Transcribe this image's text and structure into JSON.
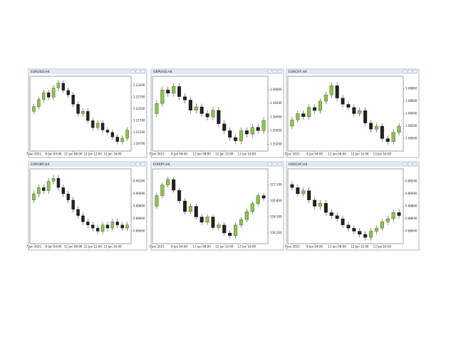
{
  "chart_data": [
    {
      "type": "candlestick",
      "title": "EURUSD,H4",
      "up_color": "#8bc34a",
      "down_color": "#222222",
      "ylim": [
        1.204,
        1.236
      ],
      "yticks": [
        {
          "value": 1.207,
          "label": "1.20700"
        },
        {
          "value": 1.212,
          "label": "1.21200"
        },
        {
          "value": 1.217,
          "label": "1.21700"
        },
        {
          "value": 1.222,
          "label": "1.22200"
        },
        {
          "value": 1.227,
          "label": "1.22700"
        },
        {
          "value": 1.232,
          "label": "1.23200"
        }
      ],
      "categories": [
        "7 Jan 2021",
        null,
        null,
        null,
        "8 Jan 04:00",
        null,
        null,
        null,
        "11 Jan 08:00",
        null,
        null,
        null,
        "12 Jan 12:00",
        null,
        null,
        null,
        "13 Jan 16:00",
        null,
        null,
        null
      ],
      "candles": [
        [
          1.221,
          1.2242,
          1.2198,
          1.223
        ],
        [
          1.223,
          1.2272,
          1.2218,
          1.226
        ],
        [
          1.226,
          1.2302,
          1.2248,
          1.229
        ],
        [
          1.229,
          1.2302,
          1.2258,
          1.227
        ],
        [
          1.227,
          1.2322,
          1.2258,
          1.231
        ],
        [
          1.231,
          1.2342,
          1.2298,
          1.233
        ],
        [
          1.233,
          1.2342,
          1.2288,
          1.23
        ],
        [
          1.23,
          1.2312,
          1.2268,
          1.228
        ],
        [
          1.228,
          1.2292,
          1.2228,
          1.224
        ],
        [
          1.224,
          1.2252,
          1.2188,
          1.22
        ],
        [
          1.22,
          1.2222,
          1.2188,
          1.221
        ],
        [
          1.221,
          1.2222,
          1.2158,
          1.217
        ],
        [
          1.217,
          1.2182,
          1.2128,
          1.214
        ],
        [
          1.214,
          1.2172,
          1.2128,
          1.216
        ],
        [
          1.216,
          1.2172,
          1.2118,
          1.213
        ],
        [
          1.213,
          1.2142,
          1.2108,
          1.212
        ],
        [
          1.212,
          1.2132,
          1.2088,
          1.21
        ],
        [
          1.21,
          1.2112,
          1.2068,
          1.208
        ],
        [
          1.208,
          1.2107,
          1.2068,
          1.2095
        ],
        [
          1.2095,
          1.2142,
          1.2083,
          1.213
        ]
      ]
    },
    {
      "type": "candlestick",
      "title": "GBPUSD,H4",
      "up_color": "#8bc34a",
      "down_color": "#222222",
      "ylim": [
        1.35,
        1.372
      ],
      "yticks": [
        {
          "value": 1.352,
          "label": "1.35200"
        },
        {
          "value": 1.356,
          "label": "1.35600"
        },
        {
          "value": 1.36,
          "label": "1.36000"
        },
        {
          "value": 1.364,
          "label": "1.36400"
        },
        {
          "value": 1.368,
          "label": "1.36800"
        }
      ],
      "categories": [
        "7 Jan 2021",
        null,
        null,
        null,
        "8 Jan 04:00",
        null,
        null,
        null,
        "11 Jan 08:00",
        null,
        null,
        null,
        "12 Jan 12:00",
        null,
        null,
        null,
        "13 Jan 16:00",
        null,
        null,
        null
      ],
      "candles": [
        [
          1.361,
          1.365,
          1.36,
          1.364
        ],
        [
          1.364,
          1.369,
          1.363,
          1.368
        ],
        [
          1.368,
          1.369,
          1.366,
          1.367
        ],
        [
          1.367,
          1.37,
          1.366,
          1.369
        ],
        [
          1.369,
          1.37,
          1.365,
          1.366
        ],
        [
          1.366,
          1.367,
          1.364,
          1.365
        ],
        [
          1.365,
          1.366,
          1.361,
          1.362
        ],
        [
          1.362,
          1.364,
          1.361,
          1.363
        ],
        [
          1.363,
          1.364,
          1.36,
          1.361
        ],
        [
          1.361,
          1.362,
          1.359,
          1.36
        ],
        [
          1.36,
          1.363,
          1.359,
          1.362
        ],
        [
          1.362,
          1.363,
          1.357,
          1.358
        ],
        [
          1.358,
          1.359,
          1.355,
          1.356
        ],
        [
          1.356,
          1.357,
          1.353,
          1.354
        ],
        [
          1.354,
          1.355,
          1.352,
          1.353
        ],
        [
          1.353,
          1.357,
          1.352,
          1.356
        ],
        [
          1.356,
          1.357,
          1.354,
          1.355
        ],
        [
          1.355,
          1.358,
          1.354,
          1.357
        ],
        [
          1.357,
          1.358,
          1.355,
          1.356
        ],
        [
          1.356,
          1.36,
          1.355,
          1.359
        ]
      ]
    },
    {
      "type": "candlestick",
      "title": "EURCHF,H4",
      "up_color": "#8bc34a",
      "down_color": "#222222",
      "ylim": [
        1.078,
        1.09
      ],
      "yticks": [
        {
          "value": 1.08,
          "label": "1.08000"
        },
        {
          "value": 1.082,
          "label": "1.08200"
        },
        {
          "value": 1.084,
          "label": "1.08400"
        },
        {
          "value": 1.086,
          "label": "1.08600"
        },
        {
          "value": 1.088,
          "label": "1.08800"
        }
      ],
      "categories": [
        "7 Jan 2021",
        null,
        null,
        null,
        "8 Jan 04:00",
        null,
        null,
        null,
        "11 Jan 08:00",
        null,
        null,
        null,
        "12 Jan 12:00",
        null,
        null,
        null,
        "13 Jan 16:00",
        null,
        null,
        null
      ],
      "candles": [
        [
          1.082,
          1.0835,
          1.0815,
          1.083
        ],
        [
          1.083,
          1.0845,
          1.0825,
          1.084
        ],
        [
          1.084,
          1.0845,
          1.083,
          1.0835
        ],
        [
          1.0835,
          1.0855,
          1.083,
          1.085
        ],
        [
          1.085,
          1.0855,
          1.084,
          1.0845
        ],
        [
          1.0845,
          1.0865,
          1.084,
          1.086
        ],
        [
          1.086,
          1.0875,
          1.0855,
          1.087
        ],
        [
          1.087,
          1.089,
          1.0865,
          1.0885
        ],
        [
          1.0885,
          1.089,
          1.086,
          1.0865
        ],
        [
          1.0865,
          1.087,
          1.085,
          1.0855
        ],
        [
          1.0855,
          1.086,
          1.0845,
          1.085
        ],
        [
          1.085,
          1.0855,
          1.0835,
          1.084
        ],
        [
          1.084,
          1.085,
          1.0835,
          1.0845
        ],
        [
          1.0845,
          1.085,
          1.082,
          1.0825
        ],
        [
          1.0825,
          1.083,
          1.081,
          1.0815
        ],
        [
          1.0815,
          1.0825,
          1.081,
          1.082
        ],
        [
          1.082,
          1.0825,
          1.0795,
          1.08
        ],
        [
          1.08,
          1.0805,
          1.079,
          1.0795
        ],
        [
          1.0795,
          1.0815,
          1.079,
          1.081
        ],
        [
          1.081,
          1.0825,
          1.0805,
          1.082
        ]
      ]
    },
    {
      "type": "candlestick",
      "title": "EURGBP,H4",
      "up_color": "#8bc34a",
      "down_color": "#222222",
      "ylim": [
        0.892,
        0.904
      ],
      "yticks": [
        {
          "value": 0.894,
          "label": "0.89400"
        },
        {
          "value": 0.896,
          "label": "0.89600"
        },
        {
          "value": 0.898,
          "label": "0.89800"
        },
        {
          "value": 0.9,
          "label": "0.90000"
        },
        {
          "value": 0.902,
          "label": "0.90200"
        }
      ],
      "categories": [
        "7 Jan 2021",
        null,
        null,
        null,
        "8 Jan 04:00",
        null,
        null,
        null,
        "11 Jan 08:00",
        null,
        null,
        null,
        "12 Jan 12:00",
        null,
        null,
        null,
        "13 Jan 16:00",
        null,
        null,
        null
      ],
      "candles": [
        [
          0.899,
          0.9005,
          0.8985,
          0.9
        ],
        [
          0.9,
          0.9015,
          0.8995,
          0.901
        ],
        [
          0.901,
          0.9015,
          0.9,
          0.9005
        ],
        [
          0.9005,
          0.9025,
          0.9,
          0.902
        ],
        [
          0.902,
          0.903,
          0.9015,
          0.9025
        ],
        [
          0.9025,
          0.903,
          0.9005,
          0.901
        ],
        [
          0.901,
          0.9015,
          0.8995,
          0.9
        ],
        [
          0.9,
          0.9005,
          0.8985,
          0.899
        ],
        [
          0.899,
          0.8995,
          0.897,
          0.8975
        ],
        [
          0.8975,
          0.898,
          0.896,
          0.8965
        ],
        [
          0.8965,
          0.897,
          0.895,
          0.8955
        ],
        [
          0.8955,
          0.896,
          0.8945,
          0.895
        ],
        [
          0.895,
          0.8955,
          0.894,
          0.8945
        ],
        [
          0.8945,
          0.895,
          0.8935,
          0.894
        ],
        [
          0.894,
          0.8955,
          0.8935,
          0.895
        ],
        [
          0.895,
          0.8955,
          0.894,
          0.8945
        ],
        [
          0.8945,
          0.896,
          0.894,
          0.8955
        ],
        [
          0.8955,
          0.896,
          0.8945,
          0.895
        ],
        [
          0.895,
          0.8955,
          0.894,
          0.8945
        ],
        [
          0.8945,
          0.8955,
          0.894,
          0.895
        ]
      ]
    },
    {
      "type": "candlestick",
      "title": "EURJPY,H4",
      "up_color": "#8bc34a",
      "down_color": "#222222",
      "ylim": [
        126.0,
        127.4
      ],
      "yticks": [
        {
          "value": 126.2,
          "label": "126.200"
        },
        {
          "value": 126.5,
          "label": "126.500"
        },
        {
          "value": 126.8,
          "label": "126.800"
        },
        {
          "value": 127.1,
          "label": "127.100"
        }
      ],
      "categories": [
        "7 Jan 2021",
        null,
        null,
        null,
        "8 Jan 04:00",
        null,
        null,
        null,
        "11 Jan 08:00",
        null,
        null,
        null,
        "12 Jan 12:00",
        null,
        null,
        null,
        "13 Jan 16:00",
        null,
        null,
        null
      ],
      "candles": [
        [
          126.7,
          126.95,
          126.65,
          126.9
        ],
        [
          126.9,
          127.15,
          126.85,
          127.1
        ],
        [
          127.1,
          127.25,
          127.05,
          127.2
        ],
        [
          127.2,
          127.25,
          126.95,
          127.0
        ],
        [
          127.0,
          127.05,
          126.75,
          126.8
        ],
        [
          126.8,
          126.85,
          126.55,
          126.6
        ],
        [
          126.6,
          126.75,
          126.55,
          126.7
        ],
        [
          126.7,
          126.75,
          126.45,
          126.5
        ],
        [
          126.5,
          126.55,
          126.35,
          126.4
        ],
        [
          126.4,
          126.55,
          126.35,
          126.5
        ],
        [
          126.5,
          126.55,
          126.25,
          126.3
        ],
        [
          126.3,
          126.4,
          126.25,
          126.35
        ],
        [
          126.35,
          126.4,
          126.15,
          126.2
        ],
        [
          126.2,
          126.25,
          126.1,
          126.15
        ],
        [
          126.15,
          126.4,
          126.1,
          126.35
        ],
        [
          126.35,
          126.5,
          126.3,
          126.45
        ],
        [
          126.45,
          126.65,
          126.4,
          126.6
        ],
        [
          126.6,
          126.8,
          126.55,
          126.75
        ],
        [
          126.75,
          126.95,
          126.7,
          126.9
        ],
        [
          126.9,
          126.95,
          126.8,
          126.85
        ]
      ]
    },
    {
      "type": "candlestick",
      "title": "USDCHF,H4",
      "up_color": "#8bc34a",
      "down_color": "#222222",
      "ylim": [
        0.882,
        0.894
      ],
      "yticks": [
        {
          "value": 0.884,
          "label": "0.88400"
        },
        {
          "value": 0.886,
          "label": "0.88600"
        },
        {
          "value": 0.888,
          "label": "0.88800"
        },
        {
          "value": 0.89,
          "label": "0.89000"
        },
        {
          "value": 0.892,
          "label": "0.89200"
        }
      ],
      "categories": [
        "7 Jan 2021",
        null,
        null,
        null,
        "8 Jan 04:00",
        null,
        null,
        null,
        "11 Jan 08:00",
        null,
        null,
        null,
        "12 Jan 12:00",
        null,
        null,
        null,
        "13 Jan 16:00",
        null,
        null,
        null
      ],
      "candles": [
        [
          0.8915,
          0.892,
          0.8905,
          0.891
        ],
        [
          0.891,
          0.8915,
          0.8895,
          0.89
        ],
        [
          0.89,
          0.891,
          0.8895,
          0.8905
        ],
        [
          0.8905,
          0.891,
          0.8885,
          0.889
        ],
        [
          0.889,
          0.8895,
          0.8875,
          0.888
        ],
        [
          0.888,
          0.889,
          0.8875,
          0.8885
        ],
        [
          0.8885,
          0.889,
          0.8865,
          0.887
        ],
        [
          0.887,
          0.8875,
          0.886,
          0.8865
        ],
        [
          0.8865,
          0.887,
          0.8855,
          0.886
        ],
        [
          0.886,
          0.8865,
          0.8845,
          0.885
        ],
        [
          0.885,
          0.8855,
          0.884,
          0.8845
        ],
        [
          0.8845,
          0.885,
          0.8835,
          0.884
        ],
        [
          0.884,
          0.8845,
          0.883,
          0.8835
        ],
        [
          0.8835,
          0.884,
          0.8825,
          0.883
        ],
        [
          0.883,
          0.8845,
          0.8825,
          0.884
        ],
        [
          0.884,
          0.885,
          0.8835,
          0.8845
        ],
        [
          0.8845,
          0.886,
          0.884,
          0.8855
        ],
        [
          0.8855,
          0.8865,
          0.885,
          0.886
        ],
        [
          0.886,
          0.8875,
          0.8855,
          0.887
        ],
        [
          0.887,
          0.8875,
          0.886,
          0.8865
        ]
      ]
    }
  ]
}
